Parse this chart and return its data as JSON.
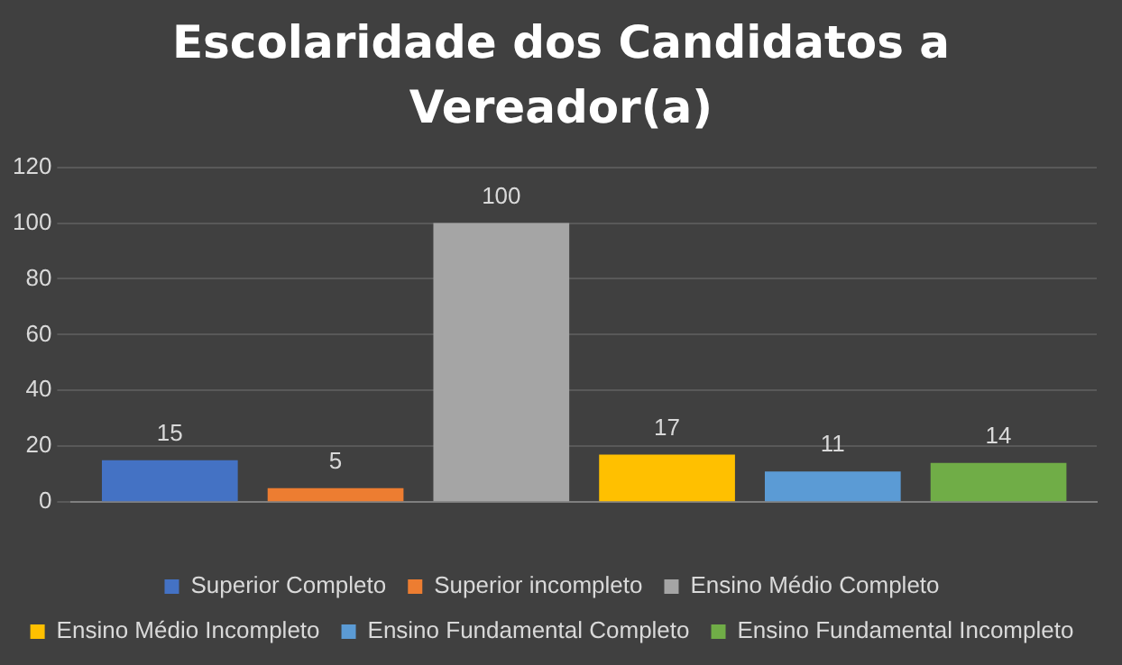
{
  "chart_data": {
    "type": "bar",
    "title": "Escolaridade dos Candidatos a Vereador(a)",
    "categories": [
      null
    ],
    "series": [
      {
        "name": "Superior Completo",
        "color": "#4472c4",
        "values": [
          15
        ]
      },
      {
        "name": "Superior incompleto",
        "color": "#ed7d31",
        "values": [
          5
        ]
      },
      {
        "name": "Ensino Médio Completo",
        "color": "#a5a5a5",
        "values": [
          100
        ]
      },
      {
        "name": "Ensino Médio Incompleto",
        "color": "#ffc000",
        "values": [
          17
        ]
      },
      {
        "name": "Ensino Fundamental Completo",
        "color": "#5b9bd5",
        "values": [
          11
        ]
      },
      {
        "name": "Ensino Fundamental Incompleto",
        "color": "#70ad47",
        "values": [
          14
        ]
      }
    ],
    "ylim": [
      0,
      120
    ],
    "yticks": [
      0,
      20,
      40,
      60,
      80,
      100,
      120
    ],
    "grid": "y",
    "legend": "bottom",
    "data_labels": true
  }
}
